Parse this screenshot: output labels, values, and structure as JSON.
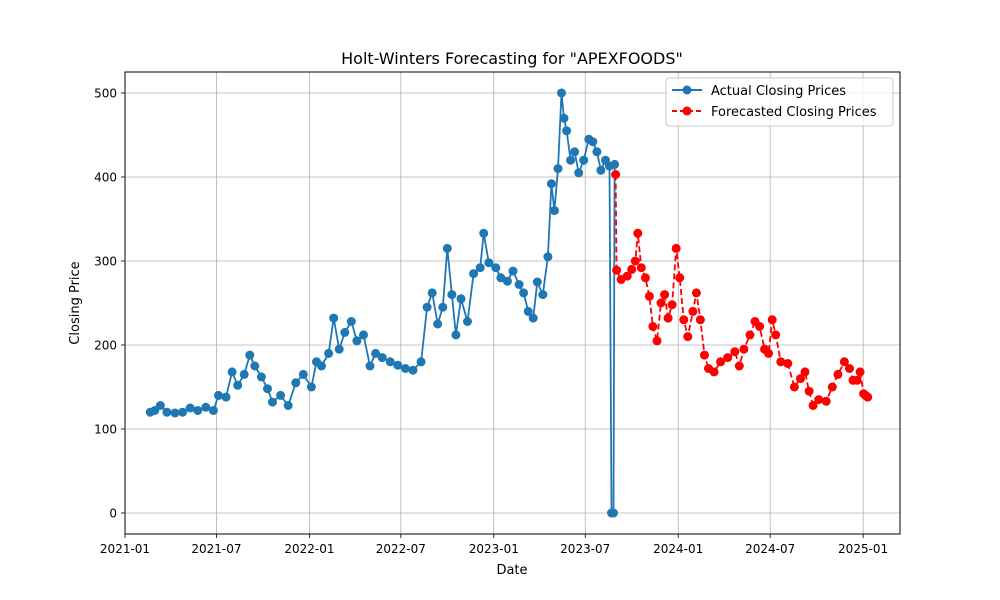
{
  "chart_data": {
    "type": "line",
    "title": "Holt-Winters Forecasting for \"APEXFOODS\"",
    "xlabel": "Date",
    "ylabel": "Closing Price",
    "x_axis_type": "date",
    "xlim": [
      "2021-01-01",
      "2025-03-15"
    ],
    "ylim": [
      -25,
      525
    ],
    "x_ticks": [
      "2021-01",
      "2021-07",
      "2022-01",
      "2022-07",
      "2023-01",
      "2023-07",
      "2024-01",
      "2024-07",
      "2025-01"
    ],
    "y_ticks": [
      0,
      100,
      200,
      300,
      400,
      500
    ],
    "grid": true,
    "legend_position": "top-right",
    "series": [
      {
        "name": "Actual Closing Prices",
        "color": "#1f77b4",
        "line_style": "solid",
        "marker": "circle",
        "points": [
          [
            "2021-02-20",
            120
          ],
          [
            "2021-03-01",
            122
          ],
          [
            "2021-03-12",
            128
          ],
          [
            "2021-03-25",
            120
          ],
          [
            "2021-04-10",
            119
          ],
          [
            "2021-04-25",
            120
          ],
          [
            "2021-05-10",
            125
          ],
          [
            "2021-05-25",
            122
          ],
          [
            "2021-06-10",
            126
          ],
          [
            "2021-06-25",
            122
          ],
          [
            "2021-07-05",
            140
          ],
          [
            "2021-07-20",
            138
          ],
          [
            "2021-08-01",
            168
          ],
          [
            "2021-08-12",
            152
          ],
          [
            "2021-08-25",
            165
          ],
          [
            "2021-09-05",
            188
          ],
          [
            "2021-09-15",
            175
          ],
          [
            "2021-09-28",
            162
          ],
          [
            "2021-10-10",
            148
          ],
          [
            "2021-10-20",
            132
          ],
          [
            "2021-11-05",
            140
          ],
          [
            "2021-11-20",
            128
          ],
          [
            "2021-12-05",
            155
          ],
          [
            "2021-12-20",
            165
          ],
          [
            "2022-01-05",
            150
          ],
          [
            "2022-01-15",
            180
          ],
          [
            "2022-01-25",
            175
          ],
          [
            "2022-02-08",
            190
          ],
          [
            "2022-02-18",
            232
          ],
          [
            "2022-03-01",
            195
          ],
          [
            "2022-03-12",
            215
          ],
          [
            "2022-03-25",
            228
          ],
          [
            "2022-04-05",
            205
          ],
          [
            "2022-04-18",
            212
          ],
          [
            "2022-05-01",
            175
          ],
          [
            "2022-05-12",
            190
          ],
          [
            "2022-05-25",
            185
          ],
          [
            "2022-06-10",
            180
          ],
          [
            "2022-06-25",
            176
          ],
          [
            "2022-07-10",
            172
          ],
          [
            "2022-07-25",
            170
          ],
          [
            "2022-08-10",
            180
          ],
          [
            "2022-08-22",
            245
          ],
          [
            "2022-09-01",
            262
          ],
          [
            "2022-09-12",
            225
          ],
          [
            "2022-09-22",
            245
          ],
          [
            "2022-10-01",
            315
          ],
          [
            "2022-10-10",
            260
          ],
          [
            "2022-10-18",
            212
          ],
          [
            "2022-10-28",
            255
          ],
          [
            "2022-11-10",
            228
          ],
          [
            "2022-11-22",
            285
          ],
          [
            "2022-12-05",
            292
          ],
          [
            "2022-12-12",
            333
          ],
          [
            "2022-12-22",
            298
          ],
          [
            "2023-01-05",
            292
          ],
          [
            "2023-01-15",
            280
          ],
          [
            "2023-01-28",
            276
          ],
          [
            "2023-02-08",
            288
          ],
          [
            "2023-02-20",
            272
          ],
          [
            "2023-03-01",
            262
          ],
          [
            "2023-03-10",
            240
          ],
          [
            "2023-03-20",
            232
          ],
          [
            "2023-03-28",
            275
          ],
          [
            "2023-04-08",
            260
          ],
          [
            "2023-04-18",
            305
          ],
          [
            "2023-04-25",
            392
          ],
          [
            "2023-05-01",
            360
          ],
          [
            "2023-05-08",
            410
          ],
          [
            "2023-05-15",
            500
          ],
          [
            "2023-05-20",
            470
          ],
          [
            "2023-05-25",
            455
          ],
          [
            "2023-06-02",
            420
          ],
          [
            "2023-06-10",
            430
          ],
          [
            "2023-06-18",
            405
          ],
          [
            "2023-06-28",
            420
          ],
          [
            "2023-07-08",
            445
          ],
          [
            "2023-07-16",
            442
          ],
          [
            "2023-07-24",
            430
          ],
          [
            "2023-08-01",
            408
          ],
          [
            "2023-08-10",
            420
          ],
          [
            "2023-08-18",
            413
          ],
          [
            "2023-08-22",
            0
          ],
          [
            "2023-08-26",
            0
          ],
          [
            "2023-08-28",
            415
          ]
        ]
      },
      {
        "name": "Forecasted Closing Prices",
        "color": "#ff0000",
        "line_style": "dashed",
        "marker": "circle",
        "points": [
          [
            "2023-08-30",
            403
          ],
          [
            "2023-09-01",
            289
          ],
          [
            "2023-09-10",
            278
          ],
          [
            "2023-09-22",
            282
          ],
          [
            "2023-10-01",
            290
          ],
          [
            "2023-10-08",
            300
          ],
          [
            "2023-10-13",
            333
          ],
          [
            "2023-10-20",
            292
          ],
          [
            "2023-10-28",
            280
          ],
          [
            "2023-11-05",
            258
          ],
          [
            "2023-11-12",
            222
          ],
          [
            "2023-11-20",
            205
          ],
          [
            "2023-11-28",
            250
          ],
          [
            "2023-12-05",
            260
          ],
          [
            "2023-12-12",
            232
          ],
          [
            "2023-12-20",
            248
          ],
          [
            "2023-12-28",
            315
          ],
          [
            "2024-01-04",
            280
          ],
          [
            "2024-01-12",
            230
          ],
          [
            "2024-01-20",
            210
          ],
          [
            "2024-01-30",
            240
          ],
          [
            "2024-02-06",
            262
          ],
          [
            "2024-02-14",
            230
          ],
          [
            "2024-02-22",
            188
          ],
          [
            "2024-03-01",
            172
          ],
          [
            "2024-03-12",
            168
          ],
          [
            "2024-03-25",
            180
          ],
          [
            "2024-04-08",
            185
          ],
          [
            "2024-04-22",
            192
          ],
          [
            "2024-05-01",
            175
          ],
          [
            "2024-05-10",
            195
          ],
          [
            "2024-05-22",
            212
          ],
          [
            "2024-06-01",
            228
          ],
          [
            "2024-06-10",
            222
          ],
          [
            "2024-06-20",
            195
          ],
          [
            "2024-06-28",
            190
          ],
          [
            "2024-07-05",
            230
          ],
          [
            "2024-07-12",
            212
          ],
          [
            "2024-07-22",
            180
          ],
          [
            "2024-08-05",
            178
          ],
          [
            "2024-08-18",
            150
          ],
          [
            "2024-08-30",
            160
          ],
          [
            "2024-09-08",
            168
          ],
          [
            "2024-09-16",
            145
          ],
          [
            "2024-09-24",
            128
          ],
          [
            "2024-10-05",
            135
          ],
          [
            "2024-10-20",
            133
          ],
          [
            "2024-11-01",
            150
          ],
          [
            "2024-11-12",
            165
          ],
          [
            "2024-11-25",
            180
          ],
          [
            "2024-12-05",
            172
          ],
          [
            "2024-12-12",
            158
          ],
          [
            "2024-12-20",
            158
          ],
          [
            "2024-12-26",
            168
          ],
          [
            "2025-01-02",
            142
          ],
          [
            "2025-01-06",
            140
          ],
          [
            "2025-01-10",
            138
          ]
        ]
      }
    ]
  }
}
